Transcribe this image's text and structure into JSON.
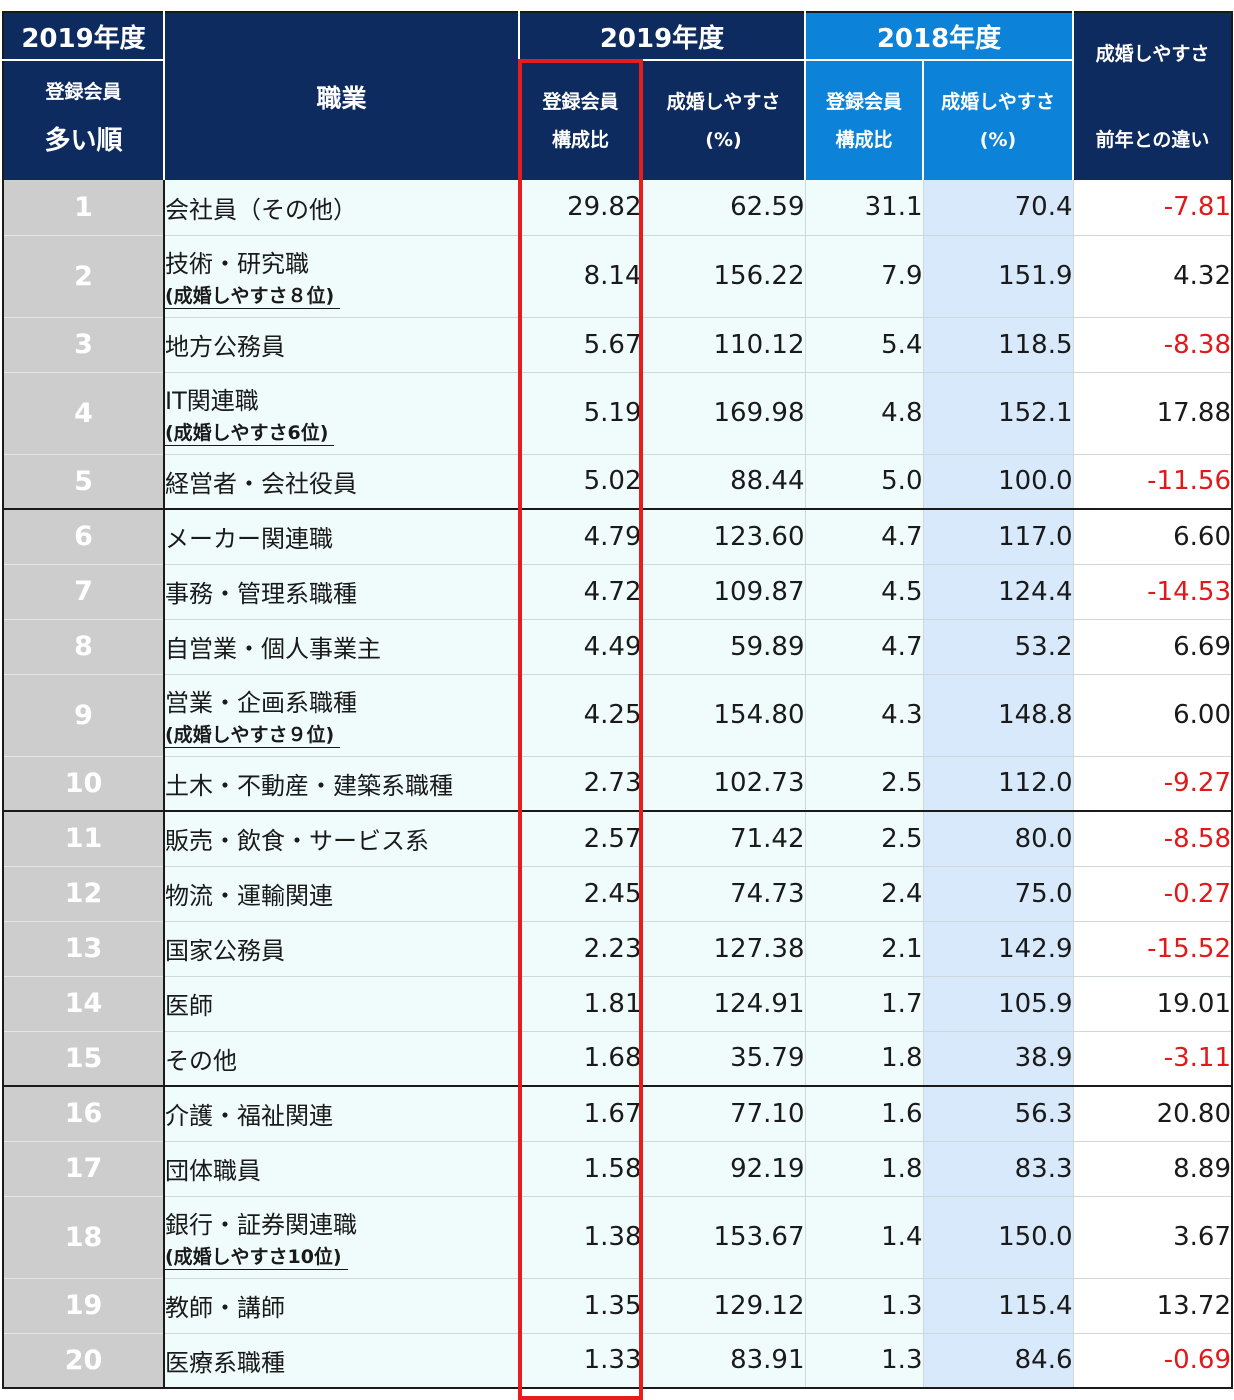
{
  "header": {
    "corner_year": "2019年度",
    "corner_line1": "登録会員",
    "corner_line2": "多い順",
    "job_col": "職業",
    "year_2019": "2019年度",
    "year_2018": "2018年度",
    "col_ratio_l1": "登録会員",
    "col_ratio_l2": "構成比",
    "col_ease_l1": "成婚しやすさ",
    "col_ease_l2": "(%)",
    "col_ratio2018_l1": "登録会員",
    "col_ratio2018_l2": "構成比",
    "col_ease2018_l1": "成婚しやすさ",
    "col_ease2018_l2": "(%)",
    "col_diff_l1": "成婚しやすさ",
    "col_diff_l2": "前年との違い"
  },
  "rows": [
    {
      "rank": "1",
      "job": "会社員（その他）",
      "note": "",
      "r19": "29.82",
      "e19": "62.59",
      "r18": "31.1",
      "e18": "70.4",
      "diff": "-7.81",
      "neg": true
    },
    {
      "rank": "2",
      "job": "技術・研究職",
      "note": "(成婚しやすさ８位)",
      "r19": "8.14",
      "e19": "156.22",
      "r18": "7.9",
      "e18": "151.9",
      "diff": "4.32",
      "neg": false
    },
    {
      "rank": "3",
      "job": "地方公務員",
      "note": "",
      "r19": "5.67",
      "e19": "110.12",
      "r18": "5.4",
      "e18": "118.5",
      "diff": "-8.38",
      "neg": true
    },
    {
      "rank": "4",
      "job": "IT関連職",
      "note": "(成婚しやすさ6位)",
      "r19": "5.19",
      "e19": "169.98",
      "r18": "4.8",
      "e18": "152.1",
      "diff": "17.88",
      "neg": false
    },
    {
      "rank": "5",
      "job": "経営者・会社役員",
      "note": "",
      "r19": "5.02",
      "e19": "88.44",
      "r18": "5.0",
      "e18": "100.0",
      "diff": "-11.56",
      "neg": true
    },
    {
      "rank": "6",
      "job": "メーカー関連職",
      "note": "",
      "r19": "4.79",
      "e19": "123.60",
      "r18": "4.7",
      "e18": "117.0",
      "diff": "6.60",
      "neg": false
    },
    {
      "rank": "7",
      "job": "事務・管理系職種",
      "note": "",
      "r19": "4.72",
      "e19": "109.87",
      "r18": "4.5",
      "e18": "124.4",
      "diff": "-14.53",
      "neg": true
    },
    {
      "rank": "8",
      "job": "自営業・個人事業主",
      "note": "",
      "r19": "4.49",
      "e19": "59.89",
      "r18": "4.7",
      "e18": "53.2",
      "diff": "6.69",
      "neg": false
    },
    {
      "rank": "9",
      "job": "営業・企画系職種",
      "note": "(成婚しやすさ９位)",
      "r19": "4.25",
      "e19": "154.80",
      "r18": "4.3",
      "e18": "148.8",
      "diff": "6.00",
      "neg": false
    },
    {
      "rank": "10",
      "job": "土木・不動産・建築系職種",
      "note": "",
      "r19": "2.73",
      "e19": "102.73",
      "r18": "2.5",
      "e18": "112.0",
      "diff": "-9.27",
      "neg": true
    },
    {
      "rank": "11",
      "job": "販売・飲食・サービス系",
      "note": "",
      "r19": "2.57",
      "e19": "71.42",
      "r18": "2.5",
      "e18": "80.0",
      "diff": "-8.58",
      "neg": true
    },
    {
      "rank": "12",
      "job": "物流・運輸関連",
      "note": "",
      "r19": "2.45",
      "e19": "74.73",
      "r18": "2.4",
      "e18": "75.0",
      "diff": "-0.27",
      "neg": true
    },
    {
      "rank": "13",
      "job": "国家公務員",
      "note": "",
      "r19": "2.23",
      "e19": "127.38",
      "r18": "2.1",
      "e18": "142.9",
      "diff": "-15.52",
      "neg": true
    },
    {
      "rank": "14",
      "job": "医師",
      "note": "",
      "r19": "1.81",
      "e19": "124.91",
      "r18": "1.7",
      "e18": "105.9",
      "diff": "19.01",
      "neg": false
    },
    {
      "rank": "15",
      "job": "その他",
      "note": "",
      "r19": "1.68",
      "e19": "35.79",
      "r18": "1.8",
      "e18": "38.9",
      "diff": "-3.11",
      "neg": true
    },
    {
      "rank": "16",
      "job": "介護・福祉関連",
      "note": "",
      "r19": "1.67",
      "e19": "77.10",
      "r18": "1.6",
      "e18": "56.3",
      "diff": "20.80",
      "neg": false
    },
    {
      "rank": "17",
      "job": "団体職員",
      "note": "",
      "r19": "1.58",
      "e19": "92.19",
      "r18": "1.8",
      "e18": "83.3",
      "diff": "8.89",
      "neg": false
    },
    {
      "rank": "18",
      "job": "銀行・証券関連職",
      "note": "(成婚しやすさ10位)",
      "r19": "1.38",
      "e19": "153.67",
      "r18": "1.4",
      "e18": "150.0",
      "diff": "3.67",
      "neg": false
    },
    {
      "rank": "19",
      "job": "教師・講師",
      "note": "",
      "r19": "1.35",
      "e19": "129.12",
      "r18": "1.3",
      "e18": "115.4",
      "diff": "13.72",
      "neg": false
    },
    {
      "rank": "20",
      "job": "医療系職種",
      "note": "",
      "r19": "1.33",
      "e19": "83.91",
      "r18": "1.3",
      "e18": "84.6",
      "diff": "-0.69",
      "neg": true
    }
  ],
  "colors": {
    "navy": "#0d2b5e",
    "blue": "#0c82d8",
    "negative": "#e01a1a",
    "highlight": "#e81c1c",
    "rank_bg": "#cdcdcd",
    "light_cyan": "#f0fcfc",
    "light_blue": "#d7e9fb"
  }
}
